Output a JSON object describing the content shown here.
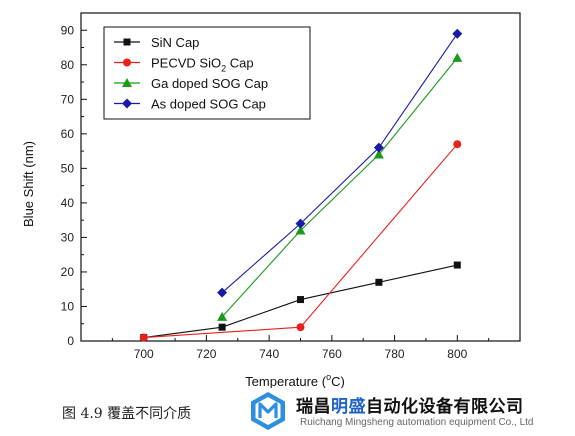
{
  "chart_data": {
    "type": "line",
    "x": [
      700,
      725,
      750,
      775,
      800
    ],
    "xlabel_main": "Temperature (",
    "xlabel_sup": "o",
    "xlabel_end": "C)",
    "ylabel": "Blue Shift (nm)",
    "xlim": [
      680,
      820
    ],
    "ylim": [
      0,
      95
    ],
    "xticks": [
      700,
      720,
      740,
      760,
      780,
      800
    ],
    "yticks": [
      0,
      10,
      20,
      30,
      40,
      50,
      60,
      70,
      80,
      90
    ],
    "grid": false,
    "legend_position": "top-left",
    "series": [
      {
        "name": "SiN Cap",
        "color": "#111111",
        "marker": "square",
        "points": [
          [
            700,
            1
          ],
          [
            725,
            4
          ],
          [
            750,
            12
          ],
          [
            775,
            17
          ],
          [
            800,
            22
          ]
        ]
      },
      {
        "name": "PECVD SiO2 Cap",
        "name_main": "PECVD SiO",
        "name_sub": "2",
        "name_end": " Cap",
        "color": "#e8211d",
        "marker": "circle",
        "points": [
          [
            700,
            1
          ],
          [
            750,
            4
          ],
          [
            800,
            57
          ]
        ]
      },
      {
        "name": "Ga doped SOG Cap",
        "color": "#1a9a1a",
        "marker": "triangle",
        "points": [
          [
            725,
            7
          ],
          [
            750,
            32
          ],
          [
            775,
            54
          ],
          [
            800,
            82
          ]
        ]
      },
      {
        "name": "As doped SOG Cap",
        "color": "#1a1aa8",
        "marker": "diamond",
        "points": [
          [
            725,
            14
          ],
          [
            750,
            34
          ],
          [
            775,
            56
          ],
          [
            800,
            89
          ]
        ]
      }
    ]
  },
  "caption": "图  4.9  覆盖不同介质",
  "watermark": {
    "cn_part1": "瑞昌",
    "cn_part2": "明盛",
    "cn_part3": "自动化设备有限公司",
    "en": "Ruichang Mingsheng automation equipment Co., Ltd",
    "accent_color": "#1e63c9"
  }
}
